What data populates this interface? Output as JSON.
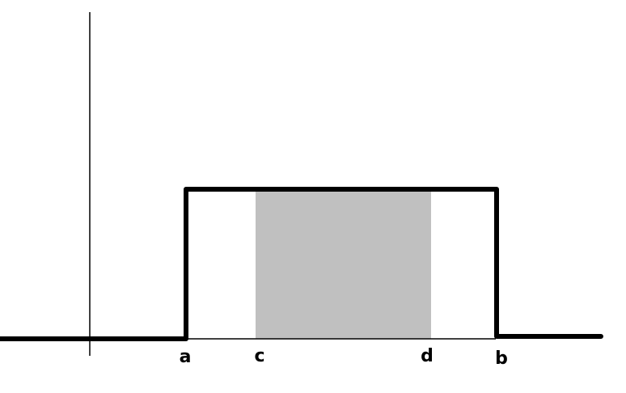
{
  "diagram": {
    "labels": {
      "a": "a",
      "c": "c",
      "d": "d",
      "b": "b"
    },
    "colors": {
      "line": "#000000",
      "shaded_region": "#c0c0c0",
      "background": "#ffffff"
    }
  }
}
